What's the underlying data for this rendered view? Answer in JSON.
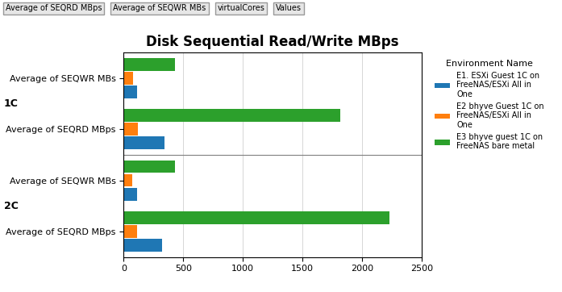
{
  "chart_data": {
    "type": "bar",
    "orientation": "horizontal",
    "title": "Disk Sequential Read/Write MBps",
    "categories": [
      "Average of SEQWR MBs",
      "Average of SEQRD MBps",
      "Average of SEQWR MBs",
      "Average of SEQRD MBps"
    ],
    "category_groups": [
      "1C",
      "1C",
      "2C",
      "2C"
    ],
    "series": [
      {
        "name": "E1. ESXi Guest 1C on\nFreeNAS/ESXi All in\nOne",
        "values": [
          110,
          340,
          110,
          320
        ]
      },
      {
        "name": "E2 bhyve Guest 1C on\nFreeNAS/ESXi All in\nOne",
        "values": [
          80,
          120,
          75,
          115
        ]
      },
      {
        "name": "E3 bhyve guest 1C on\nFreeNAS bare metal",
        "values": [
          430,
          1820,
          430,
          2230
        ]
      }
    ],
    "legend_title": "Environment Name",
    "legend": "upper left",
    "xlim": [
      0,
      2500
    ],
    "xticks": [
      0,
      500,
      1000,
      1500,
      2000,
      2500
    ],
    "grid": true,
    "annotations": [
      "Average of SEQRD MBps",
      "Average of SEQWR MBs",
      "virtualCores",
      "Values"
    ]
  }
}
